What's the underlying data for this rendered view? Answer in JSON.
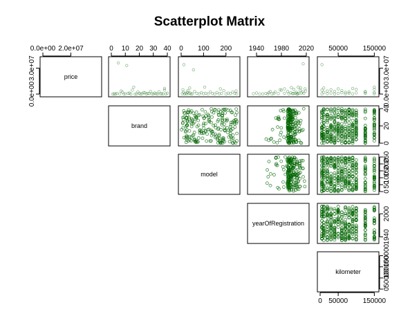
{
  "chart_data": {
    "type": "scatter",
    "title": "Scatterplot Matrix",
    "variables": [
      "price",
      "brand",
      "model",
      "yearOfRegistration",
      "kilometer"
    ],
    "layout": "upper-triangle",
    "point_color": "#006400",
    "axes": {
      "price": {
        "range": [
          0,
          40000000
        ],
        "ticks": [
          0,
          30000000
        ],
        "tick_labels": [
          "0.0e+00",
          "3.0e+07"
        ],
        "top_ticks": [
          0,
          20000000
        ],
        "top_tick_labels": [
          "0.0e+00",
          "2.0e+07"
        ]
      },
      "brand": {
        "range": [
          0,
          40
        ],
        "ticks": [
          0,
          10,
          20,
          30,
          40
        ],
        "tick_labels": [
          "0",
          "10",
          "20",
          "30",
          "40"
        ],
        "right_ticks": [
          0,
          20,
          40
        ],
        "right_tick_labels": [
          "0",
          "20",
          "40"
        ]
      },
      "model": {
        "range": [
          0,
          250
        ],
        "ticks": [
          0,
          100,
          200
        ],
        "tick_labels": [
          "0",
          "100",
          "200"
        ],
        "right_ticks": [
          0,
          50,
          100,
          150,
          200,
          250
        ],
        "right_tick_labels": [
          "0",
          "50",
          "100",
          "150",
          "200",
          "250"
        ]
      },
      "yearOfRegistration": {
        "range": [
          1930,
          2020
        ],
        "ticks": [
          1940,
          1980,
          2020
        ],
        "tick_labels": [
          "1940",
          "1980",
          "2020"
        ],
        "right_ticks": [
          1940,
          2000
        ],
        "right_tick_labels": [
          "1940",
          "2000"
        ]
      },
      "kilometer": {
        "range": [
          0,
          155000
        ],
        "ticks": [
          50000,
          150000
        ],
        "tick_labels": [
          "50000",
          "150000"
        ],
        "top_tick_labels_extra": [
          "0"
        ],
        "bottom_ticks": [
          0,
          50000,
          150000
        ],
        "bottom_tick_labels": [
          "0",
          "50000",
          "150000"
        ],
        "right_ticks": [
          0,
          50000,
          100000,
          150000
        ],
        "right_tick_labels": [
          "0",
          "50000",
          "100000",
          "150000"
        ]
      }
    },
    "panels": [
      {
        "row": "price",
        "col": "brand",
        "points": [
          [
            1,
            5000
          ],
          [
            2,
            300000
          ],
          [
            3,
            12000
          ],
          [
            4,
            800000
          ],
          [
            6,
            150000
          ],
          [
            7,
            3500000
          ],
          [
            9,
            40000
          ],
          [
            10,
            250000
          ],
          [
            12,
            900000
          ],
          [
            14,
            2000
          ],
          [
            15,
            4500000
          ],
          [
            17,
            60000
          ],
          [
            18,
            200000
          ],
          [
            20,
            700000
          ],
          [
            21,
            5000
          ],
          [
            22,
            350000
          ],
          [
            24,
            1500000
          ],
          [
            25,
            100000
          ],
          [
            27,
            600000
          ],
          [
            29,
            250000
          ],
          [
            30,
            90000
          ],
          [
            31,
            1200000
          ],
          [
            32,
            400000
          ],
          [
            33,
            30000
          ],
          [
            34,
            2800000
          ],
          [
            35,
            150000
          ],
          [
            36,
            600000
          ],
          [
            37,
            80000
          ],
          [
            38,
            4500000
          ],
          [
            39,
            200000
          ],
          [
            40,
            1000000
          ],
          [
            5,
            36000000
          ],
          [
            11,
            33000000
          ],
          [
            38,
            6500000
          ],
          [
            23,
            1800000
          ],
          [
            16,
            8000000
          ],
          [
            19,
            2500000
          ],
          [
            28,
            3000000
          ],
          [
            26,
            700000
          ],
          [
            8,
            2200000
          ],
          [
            13,
            1100000
          ]
        ]
      },
      {
        "row": "price",
        "col": "model",
        "points": [
          [
            5,
            300000
          ],
          [
            10,
            2000000
          ],
          [
            15,
            80000
          ],
          [
            20,
            900000
          ],
          [
            25,
            150000
          ],
          [
            30,
            4000000
          ],
          [
            35,
            500000
          ],
          [
            40,
            1200000
          ],
          [
            45,
            60000
          ],
          [
            50,
            350000
          ],
          [
            60,
            3000000
          ],
          [
            70,
            800000
          ],
          [
            80,
            200000
          ],
          [
            90,
            1500000
          ],
          [
            100,
            400000
          ],
          [
            110,
            900000
          ],
          [
            120,
            150000
          ],
          [
            130,
            2500000
          ],
          [
            140,
            600000
          ],
          [
            150,
            100000
          ],
          [
            160,
            1800000
          ],
          [
            170,
            300000
          ],
          [
            180,
            700000
          ],
          [
            190,
            4000000
          ],
          [
            200,
            200000
          ],
          [
            210,
            1100000
          ],
          [
            220,
            500000
          ],
          [
            230,
            2200000
          ],
          [
            240,
            900000
          ],
          [
            248,
            350000
          ],
          [
            12,
            34000000
          ],
          [
            55,
            28000000
          ],
          [
            105,
            8000000
          ],
          [
            175,
            6000000
          ],
          [
            245,
            3500000
          ],
          [
            8,
            5000000
          ],
          [
            28,
            2000000
          ],
          [
            38,
            7000000
          ]
        ]
      },
      {
        "row": "price",
        "col": "yearOfRegistration",
        "points": [
          [
            1935,
            400000
          ],
          [
            1940,
            1200000
          ],
          [
            1950,
            200000
          ],
          [
            1955,
            800000
          ],
          [
            1960,
            1500000
          ],
          [
            1965,
            300000
          ],
          [
            1970,
            2500000
          ],
          [
            1975,
            500000
          ],
          [
            1980,
            4500000
          ],
          [
            1985,
            900000
          ],
          [
            1990,
            3000000
          ],
          [
            1992,
            200000
          ],
          [
            1995,
            1500000
          ],
          [
            1998,
            600000
          ],
          [
            2000,
            5500000
          ],
          [
            2002,
            1000000
          ],
          [
            2004,
            2000000
          ],
          [
            2006,
            300000
          ],
          [
            2008,
            700000
          ],
          [
            2010,
            4500000
          ],
          [
            2012,
            1200000
          ],
          [
            2014,
            2500000
          ],
          [
            2016,
            800000
          ],
          [
            2018,
            6000000
          ],
          [
            1968,
            700000
          ],
          [
            1945,
            100000
          ],
          [
            1958,
            50000
          ],
          [
            2005,
            200000
          ],
          [
            2015,
            35000000
          ],
          [
            1985,
            6000000
          ],
          [
            1996,
            7500000
          ],
          [
            2007,
            8000000
          ],
          [
            1978,
            5000000
          ],
          [
            2011,
            7000000
          ],
          [
            1962,
            3000000
          ],
          [
            1999,
            600000
          ],
          [
            2019,
            3500000
          ]
        ]
      },
      {
        "row": "price",
        "col": "kilometer",
        "points": [
          [
            5000,
            300000
          ],
          [
            10000,
            2000000
          ],
          [
            20000,
            500000
          ],
          [
            30000,
            1200000
          ],
          [
            40000,
            100000
          ],
          [
            50000,
            800000
          ],
          [
            60000,
            1500000
          ],
          [
            70000,
            300000
          ],
          [
            80000,
            900000
          ],
          [
            90000,
            200000
          ],
          [
            100000,
            1300000
          ],
          [
            125000,
            700000
          ],
          [
            150000,
            400000
          ],
          [
            5000,
            4500000
          ],
          [
            20000,
            3500000
          ],
          [
            50000,
            6000000
          ],
          [
            80000,
            2500000
          ],
          [
            100000,
            5500000
          ],
          [
            125000,
            3000000
          ],
          [
            150000,
            5500000
          ],
          [
            5000,
            34000000
          ],
          [
            150000,
            8000000
          ],
          [
            150000,
            1800000
          ],
          [
            30000,
            5000000
          ],
          [
            60000,
            4000000
          ],
          [
            90000,
            6500000
          ],
          [
            40000,
            3000000
          ],
          [
            10000,
            7000000
          ],
          [
            70000,
            2000000
          ],
          [
            125000,
            2000000
          ]
        ]
      }
    ],
    "density_panels": [
      {
        "row": "brand",
        "col": "model"
      },
      {
        "row": "brand",
        "col": "yearOfRegistration"
      },
      {
        "row": "brand",
        "col": "kilometer",
        "x_levels": [
          5000,
          10000,
          20000,
          30000,
          40000,
          50000,
          60000,
          70000,
          80000,
          90000,
          100000,
          125000,
          150000
        ]
      },
      {
        "row": "model",
        "col": "yearOfRegistration"
      },
      {
        "row": "model",
        "col": "kilometer",
        "x_levels": [
          5000,
          10000,
          20000,
          30000,
          40000,
          50000,
          60000,
          70000,
          80000,
          90000,
          100000,
          125000,
          150000
        ]
      },
      {
        "row": "yearOfRegistration",
        "col": "kilometer",
        "x_levels": [
          5000,
          10000,
          20000,
          30000,
          40000,
          50000,
          60000,
          70000,
          80000,
          90000,
          100000,
          125000,
          150000
        ]
      }
    ]
  }
}
